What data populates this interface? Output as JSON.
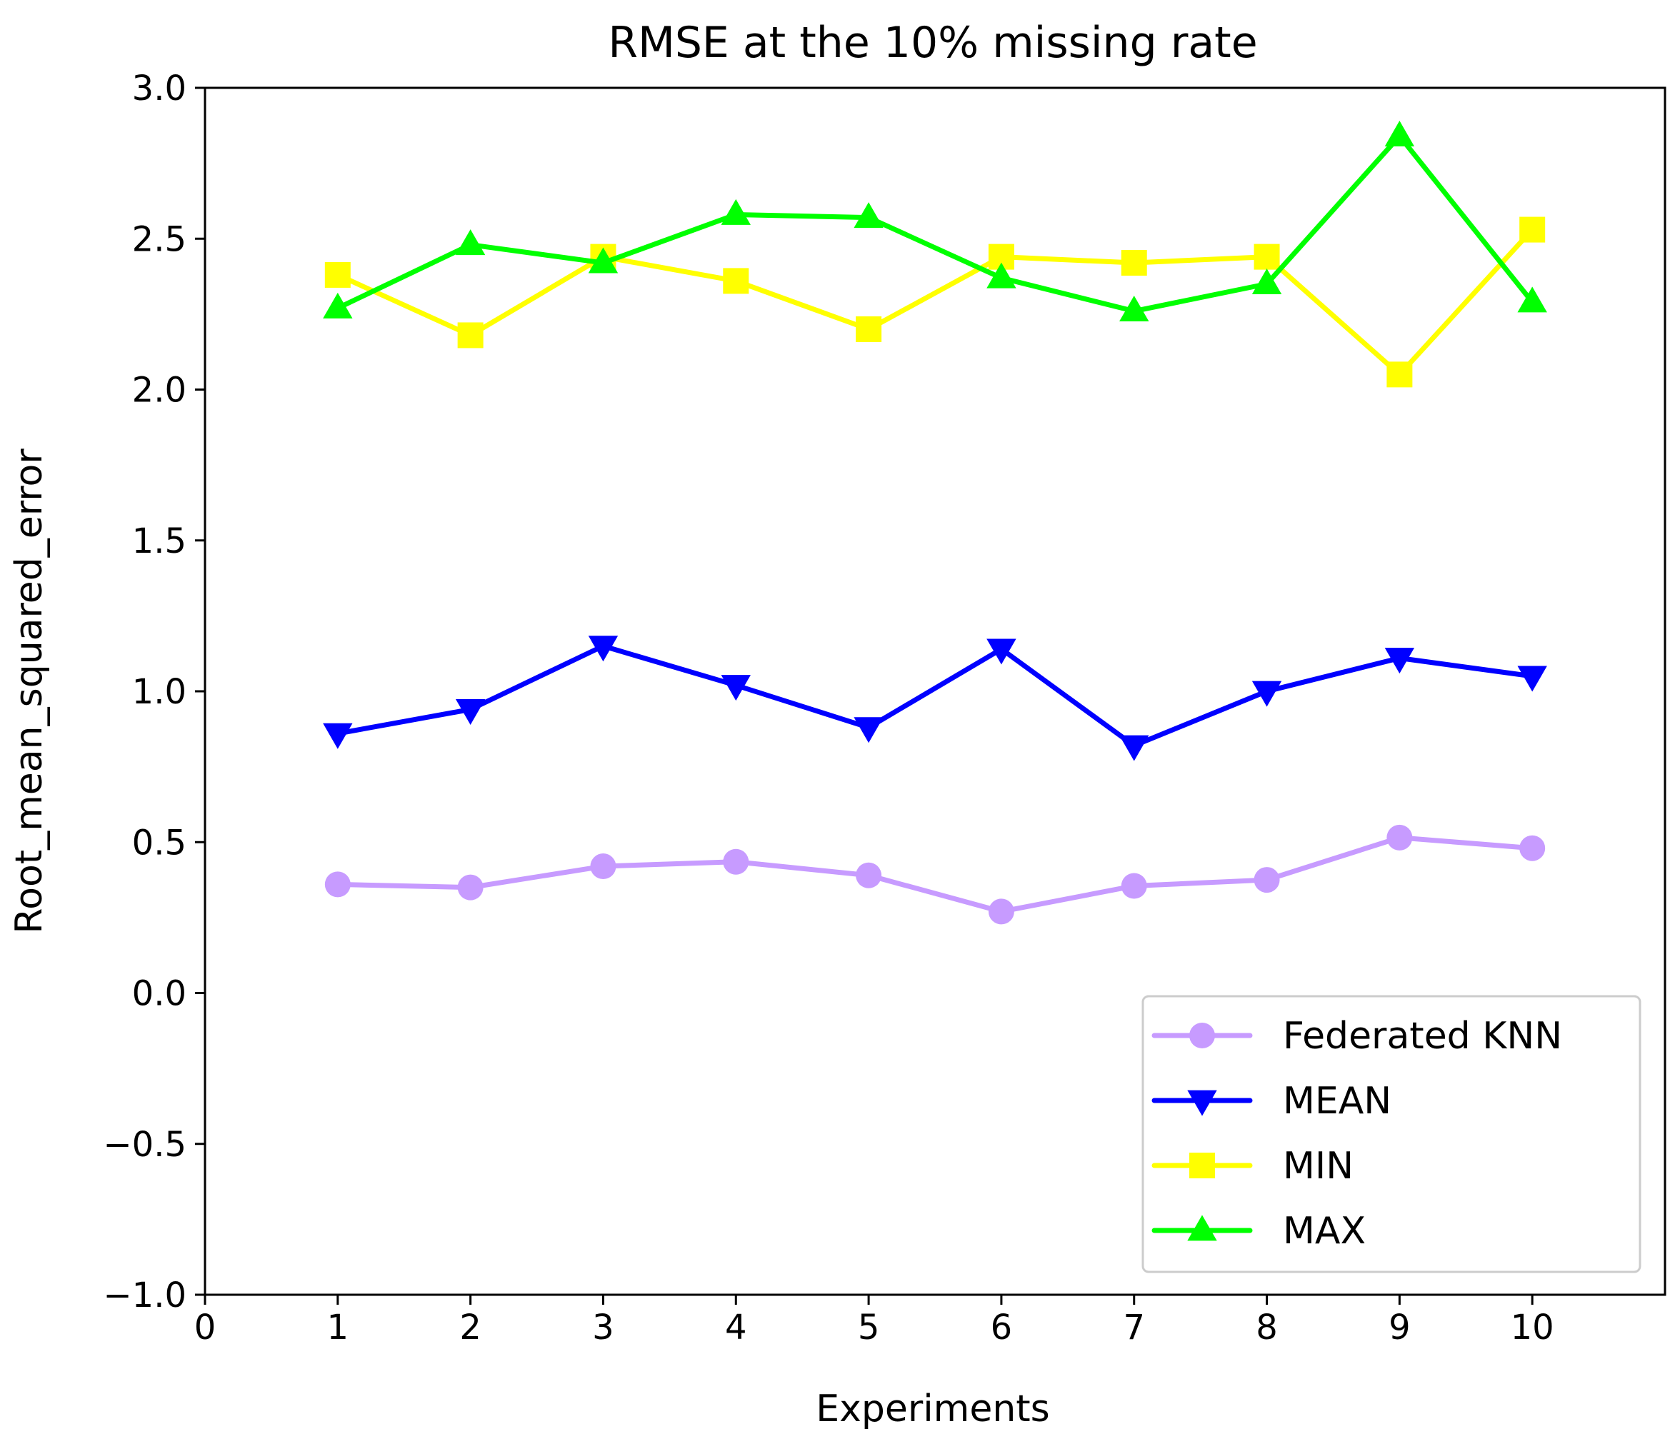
{
  "chart_data": {
    "type": "line",
    "title": "RMSE at the 10% missing rate",
    "xlabel": "Experiments",
    "ylabel": "Root_mean_squared_error",
    "xlim": [
      0,
      11
    ],
    "ylim": [
      -1.0,
      3.0
    ],
    "x_ticks": [
      "0",
      "1",
      "2",
      "3",
      "4",
      "5",
      "6",
      "7",
      "8",
      "9",
      "10"
    ],
    "y_ticks": [
      "−1.0",
      "−0.5",
      "0.0",
      "0.5",
      "1.0",
      "1.5",
      "2.0",
      "2.5",
      "3.0"
    ],
    "x": [
      1,
      2,
      3,
      4,
      5,
      6,
      7,
      8,
      9,
      10
    ],
    "legend_position": "lower-right",
    "series": [
      {
        "name": "Federated KNN",
        "marker": "circle",
        "color": "#c79bff",
        "values": [
          0.36,
          0.35,
          0.42,
          0.435,
          0.39,
          0.27,
          0.355,
          0.375,
          0.515,
          0.48
        ]
      },
      {
        "name": "MEAN",
        "marker": "triangle-down",
        "color": "#0000ff",
        "values": [
          0.86,
          0.94,
          1.15,
          1.02,
          0.88,
          1.14,
          0.82,
          1.0,
          1.11,
          1.05
        ]
      },
      {
        "name": "MIN",
        "marker": "square",
        "color": "#ffff00",
        "values": [
          2.38,
          2.18,
          2.44,
          2.36,
          2.2,
          2.44,
          2.42,
          2.44,
          2.05,
          2.53
        ]
      },
      {
        "name": "MAX",
        "marker": "triangle-up",
        "color": "#00ff00",
        "values": [
          2.27,
          2.48,
          2.42,
          2.58,
          2.57,
          2.37,
          2.26,
          2.35,
          2.84,
          2.29
        ]
      }
    ]
  }
}
